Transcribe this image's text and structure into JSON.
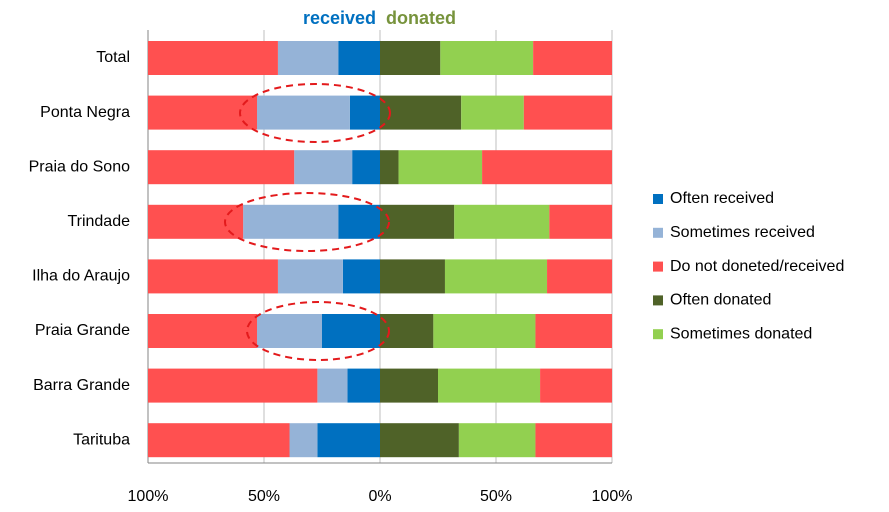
{
  "chart_data": {
    "type": "bar",
    "orientation": "horizontal",
    "side_labels": [
      {
        "text": "received",
        "color": "#0070c0"
      },
      {
        "text": "donated",
        "color": "#77933c"
      }
    ],
    "categories": [
      "Total",
      "Ponta Negra",
      "Praia do Sono",
      "Trindade",
      "Ilha do Araujo",
      "Praia Grande",
      "Barra Grande",
      "Tarituba"
    ],
    "series": [
      {
        "name": "Often received",
        "color": "#0070c0",
        "values": [
          -18,
          -13,
          -12,
          -18,
          -16,
          -25,
          -14,
          -27
        ]
      },
      {
        "name": "Sometimes received",
        "color": "#95b3d7",
        "values": [
          -26,
          -40,
          -25,
          -41,
          -28,
          -28,
          -13,
          -12
        ]
      },
      {
        "name": "Do not doneted/received",
        "color": "#ff5050",
        "values": [
          -56,
          -47,
          -63,
          -41,
          -56,
          -47,
          -73,
          -61
        ]
      },
      {
        "name": "Often donated",
        "color": "#4f6228",
        "values": [
          26,
          35,
          8,
          32,
          28,
          23,
          25,
          34
        ]
      },
      {
        "name": "Sometimes donated",
        "color": "#92d050",
        "values": [
          40,
          27,
          36,
          41,
          44,
          44,
          44,
          33
        ]
      },
      {
        "color": "#ff5050",
        "values": [
          34,
          38,
          56,
          27,
          28,
          33,
          31,
          33
        ]
      }
    ],
    "xlim": [
      -100,
      100
    ],
    "xticks": [
      {
        "value": -100,
        "label": "100%"
      },
      {
        "value": -50,
        "label": "50%"
      },
      {
        "value": 0,
        "label": "0%"
      },
      {
        "value": 50,
        "label": "50%"
      },
      {
        "value": 100,
        "label": "100%"
      }
    ],
    "grid": true,
    "legend": "right"
  }
}
